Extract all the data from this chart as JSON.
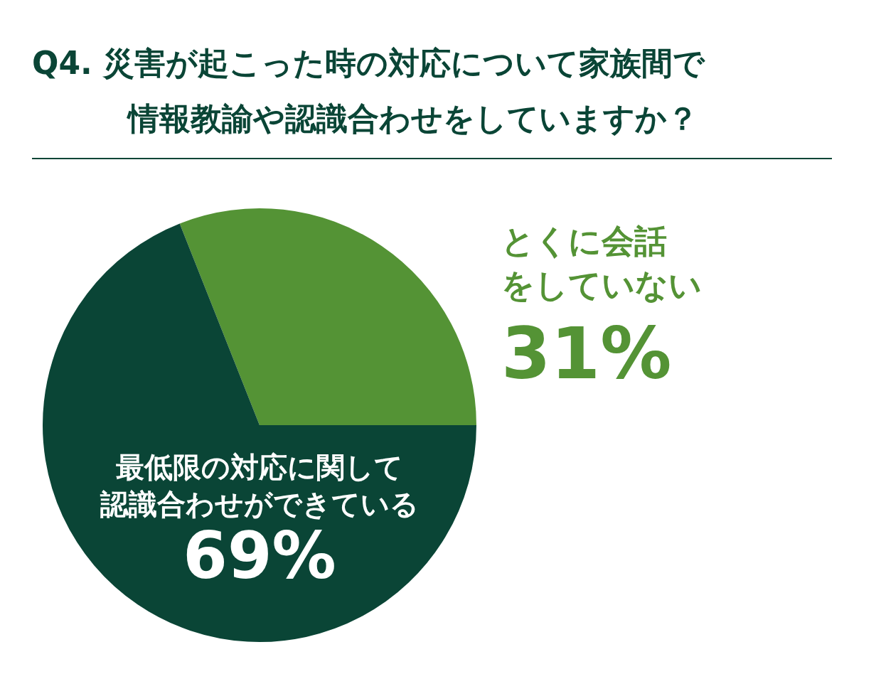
{
  "chart_data": {
    "type": "pie",
    "title": "Q4. 災害が起こった時の対応について家族間で情報教諭や認識合わせをしていますか？",
    "categories": [
      "とくに会話をしていない",
      "最低限の対応に関して認識合わせができている"
    ],
    "values": [
      31,
      69
    ],
    "colors": [
      "#549335",
      "#0a4536"
    ],
    "value_labels": [
      "31%",
      "69%"
    ],
    "legend": false
  }
}
